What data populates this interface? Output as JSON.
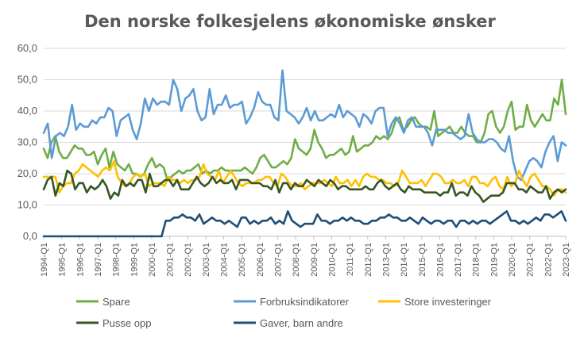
{
  "chart_data": {
    "type": "line",
    "title": "Den norske folkesjelens økonomiske ønsker",
    "xlabel": "",
    "ylabel": "",
    "ylim": [
      0,
      60
    ],
    "yticks": [
      "0,0",
      "10,0",
      "20,0",
      "30,0",
      "40,0",
      "50,0",
      "60,0"
    ],
    "grid": true,
    "legend_position": "bottom",
    "x_labels": [
      "1994-Q1",
      "1995-Q1",
      "1996-Q1",
      "1997-Q1",
      "1998-Q1",
      "1999-Q1",
      "2000-Q1",
      "2001-Q1",
      "2002-Q1",
      "2003-Q1",
      "2004-Q1",
      "2005-Q1",
      "2006-Q1",
      "2007-Q1",
      "2008-Q1",
      "2009-Q1",
      "2010-Q1",
      "2011-Q1",
      "2012-Q1",
      "2013-Q1",
      "2014-Q1",
      "2015-Q1",
      "2016-Q1",
      "2017-Q1",
      "2018-Q1",
      "2019-Q1",
      "2020-Q1",
      "2021-Q1",
      "2022-Q1",
      "2023-Q1"
    ],
    "x_start": "1994-Q1",
    "x_end": "2023-Q1",
    "series": [
      {
        "name": "Spare",
        "color": "#70ad47",
        "values": [
          28,
          25,
          30,
          32,
          27,
          25,
          25,
          27,
          29,
          28,
          28,
          26,
          26,
          27,
          23,
          26,
          28,
          22,
          27,
          23,
          22,
          21,
          23,
          20,
          20,
          19,
          20,
          23,
          25,
          22,
          23,
          22,
          18,
          19,
          20,
          21,
          20,
          21,
          21,
          22,
          23,
          20,
          21,
          20,
          21,
          21,
          22,
          21,
          21,
          21,
          21,
          21,
          22,
          21,
          20,
          22,
          25,
          26,
          24,
          22,
          22,
          23,
          24,
          23,
          25,
          31,
          28,
          27,
          26,
          28,
          34,
          30,
          28,
          25,
          26,
          26,
          27,
          28,
          26,
          27,
          32,
          27,
          28,
          29,
          29,
          30,
          32,
          31,
          32,
          31,
          33,
          37,
          38,
          34,
          35,
          37,
          38,
          36,
          35,
          35,
          34,
          40,
          32,
          33,
          34,
          35,
          33,
          33,
          35,
          33,
          32,
          32,
          30,
          30,
          33,
          39,
          40,
          35,
          33,
          35,
          40,
          43,
          34,
          35,
          35,
          42,
          37,
          35,
          37,
          39,
          37,
          37,
          44,
          42,
          50,
          39
        ]
      },
      {
        "name": "Forbruksindikatorer",
        "color": "#5b9bd5",
        "values": [
          33,
          36,
          25,
          32,
          33,
          32,
          35,
          42,
          34,
          36,
          35,
          35,
          37,
          36,
          38,
          38,
          41,
          40,
          32,
          37,
          38,
          39,
          34,
          31,
          36,
          44,
          40,
          44,
          42,
          43,
          43,
          42,
          50,
          47,
          40,
          44,
          45,
          47,
          40,
          37,
          38,
          47,
          39,
          42,
          42,
          45,
          41,
          42,
          42,
          43,
          36,
          38,
          41,
          46,
          43,
          42,
          42,
          38,
          37,
          53,
          40,
          39,
          38,
          36,
          38,
          41,
          37,
          40,
          37,
          37,
          38,
          39,
          38,
          42,
          38,
          40,
          39,
          38,
          35,
          39,
          38,
          36,
          40,
          41,
          41,
          32,
          36,
          38,
          36,
          33,
          37,
          38,
          35,
          35,
          35,
          33,
          29,
          34,
          34,
          34,
          33,
          33,
          32,
          31,
          32,
          39,
          33,
          31,
          30,
          30,
          31,
          31,
          30,
          28,
          27,
          32,
          24,
          19,
          18,
          21,
          24,
          25,
          24,
          22,
          27,
          30,
          32,
          24,
          30,
          29
        ]
      },
      {
        "name": "Store investeringer",
        "color": "#ffc000",
        "values": [
          19,
          19,
          19,
          19,
          14,
          16,
          17,
          17,
          20,
          21,
          23,
          22,
          21,
          20,
          19,
          21,
          22,
          21,
          24,
          19,
          17,
          16,
          17,
          19,
          20,
          19,
          20,
          16,
          17,
          17,
          17,
          16,
          19,
          18,
          18,
          17,
          18,
          17,
          18,
          18,
          19,
          23,
          20,
          19,
          18,
          21,
          17,
          19,
          21,
          19,
          17,
          16,
          17,
          17,
          17,
          18,
          18,
          19,
          19,
          17,
          16,
          20,
          19,
          17,
          16,
          16,
          17,
          15,
          16,
          17,
          17,
          17,
          18,
          17,
          16,
          19,
          17,
          17,
          18,
          16,
          18,
          16,
          19,
          20,
          19,
          19,
          18,
          18,
          17,
          17,
          16,
          17,
          21,
          19,
          17,
          17,
          17,
          18,
          16,
          18,
          20,
          20,
          19,
          17,
          17,
          18,
          17,
          17,
          18,
          16,
          19,
          19,
          17,
          17,
          16,
          18,
          19,
          16,
          15,
          19,
          16,
          17,
          21,
          18,
          16,
          19,
          20,
          18,
          16,
          16,
          15,
          13,
          15,
          15,
          14
        ]
      },
      {
        "name": "Pusse opp",
        "color": "#375623",
        "values": [
          15,
          18,
          19,
          13,
          17,
          16,
          21,
          20,
          15,
          17,
          17,
          14,
          16,
          15,
          16,
          18,
          16,
          12,
          14,
          13,
          18,
          16,
          17,
          16,
          18,
          18,
          14,
          20,
          16,
          16,
          17,
          18,
          18,
          16,
          18,
          15,
          15,
          15,
          17,
          19,
          17,
          16,
          17,
          19,
          17,
          18,
          17,
          17,
          18,
          15,
          18,
          18,
          18,
          17,
          17,
          17,
          16,
          16,
          15,
          18,
          14,
          17,
          17,
          15,
          17,
          16,
          16,
          18,
          17,
          16,
          18,
          17,
          16,
          18,
          17,
          15,
          16,
          16,
          15,
          15,
          15,
          15,
          16,
          15,
          15,
          17,
          18,
          16,
          15,
          16,
          17,
          15,
          14,
          16,
          15,
          15,
          15,
          14,
          14,
          14,
          14,
          13,
          14,
          14,
          17,
          13,
          14,
          14,
          13,
          16,
          14,
          13,
          11,
          12,
          13,
          13,
          13,
          14,
          17,
          17,
          17,
          15,
          15,
          14,
          16,
          15,
          14,
          14,
          16,
          12,
          14,
          15,
          14,
          15
        ]
      },
      {
        "name": "Gaver, barn andre",
        "color": "#1f4e79",
        "values": [
          0,
          0,
          0,
          0,
          0,
          0,
          0,
          0,
          0,
          0,
          0,
          0,
          0,
          0,
          0,
          0,
          0,
          0,
          0,
          0,
          0,
          0,
          0,
          0,
          0,
          0,
          0,
          0,
          0,
          5,
          5,
          6,
          6,
          7,
          6,
          6,
          5,
          7,
          4,
          5,
          6,
          5,
          5,
          4,
          5,
          4,
          3,
          6,
          6,
          4,
          5,
          4,
          5,
          5,
          6,
          4,
          5,
          4,
          8,
          5,
          4,
          3,
          4,
          4,
          4,
          7,
          5,
          5,
          4,
          5,
          5,
          6,
          5,
          6,
          5,
          5,
          4,
          4,
          5,
          5,
          6,
          6,
          7,
          6,
          6,
          5,
          5,
          6,
          5,
          4,
          6,
          5,
          4,
          5,
          5,
          4,
          5,
          5,
          3,
          5,
          5,
          4,
          5,
          4,
          5,
          5,
          4,
          5,
          6,
          7,
          8,
          5,
          5,
          4,
          5,
          4,
          5,
          6,
          5,
          7,
          7,
          6,
          7,
          8,
          5
        ]
      }
    ]
  }
}
